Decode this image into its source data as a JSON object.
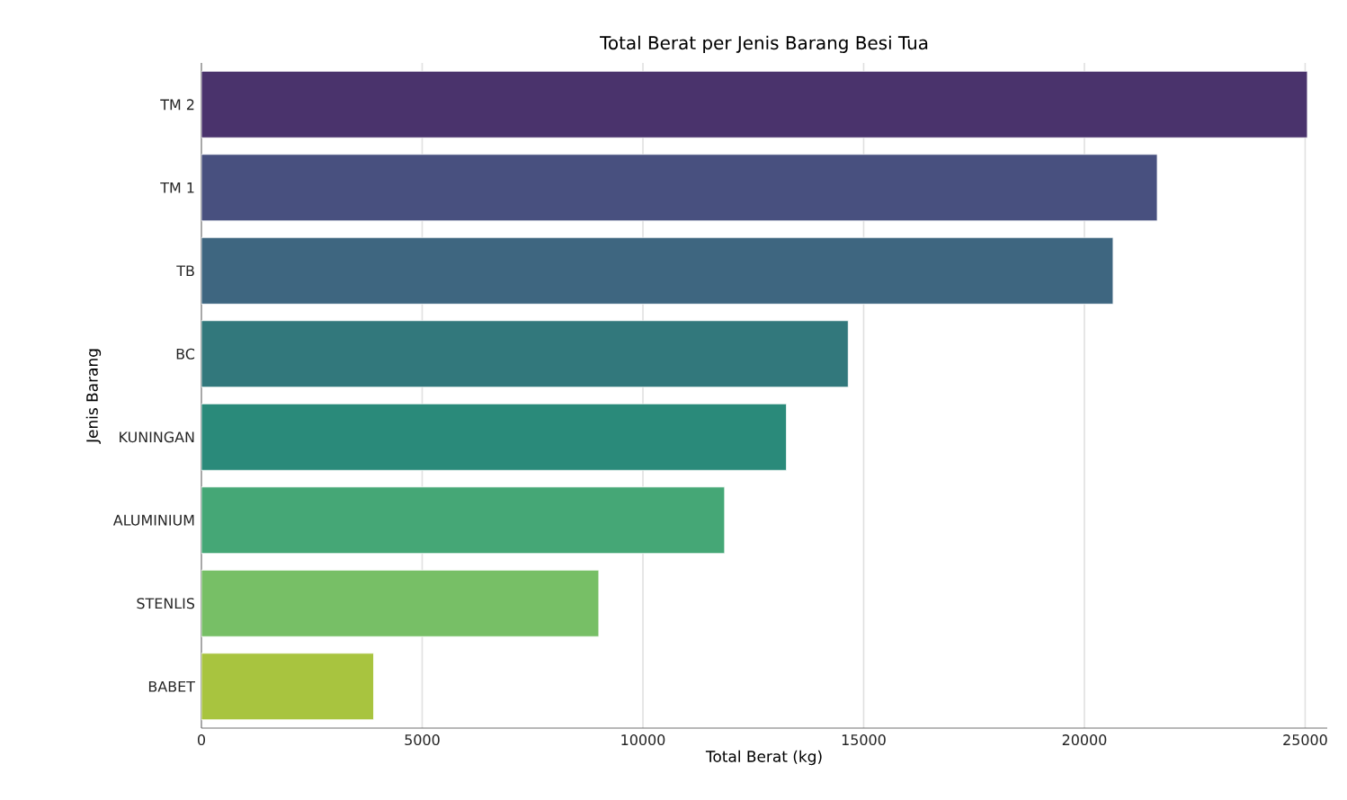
{
  "chart_data": {
    "type": "bar",
    "orientation": "horizontal",
    "title": "Total Berat per Jenis Barang Besi Tua",
    "xlabel": "Total Berat (kg)",
    "ylabel": "Jenis Barang",
    "categories": [
      "TM 2",
      "TM 1",
      "TB",
      "BC",
      "KUNINGAN",
      "ALUMINIUM",
      "STENLIS",
      "BABET"
    ],
    "values": [
      25050,
      21650,
      20650,
      14650,
      13250,
      11850,
      9000,
      3900
    ],
    "colors": [
      "#4a336c",
      "#48507f",
      "#3e6680",
      "#32787c",
      "#2a8a7a",
      "#45a776",
      "#77bf66",
      "#a8c43f"
    ],
    "xlim": [
      0,
      25500
    ],
    "xticks": [
      0,
      5000,
      10000,
      15000,
      20000,
      25000
    ],
    "grid": "x"
  }
}
